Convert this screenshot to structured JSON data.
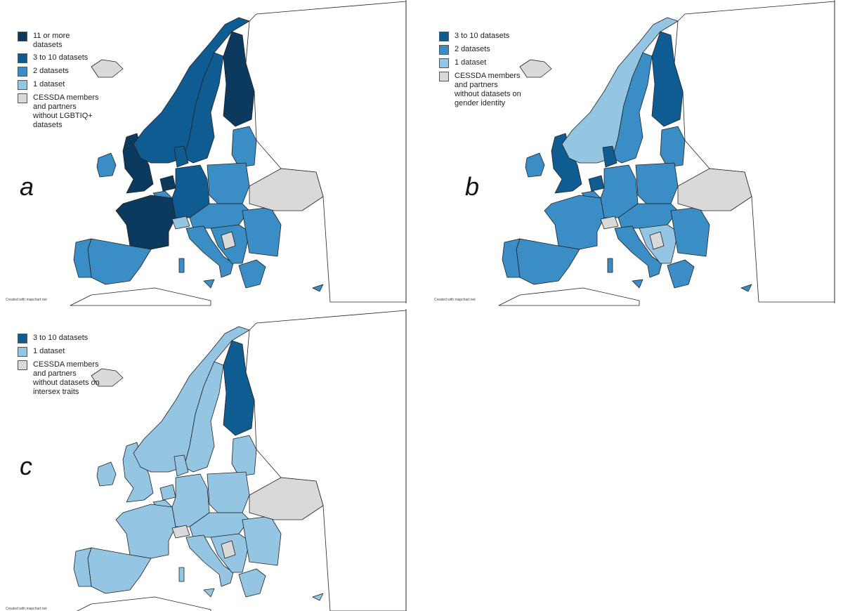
{
  "panels": [
    {
      "label": "a",
      "credit": "Created with mapchart.net",
      "legend": [
        {
          "name": "11 or more datasets",
          "color": "#0b3a5e"
        },
        {
          "name": "3 to 10 datasets",
          "color": "#0f5c93"
        },
        {
          "name": "2 datasets",
          "color": "#3a8dc5"
        },
        {
          "name": "1 dataset",
          "color": "#94c5e2"
        },
        {
          "name": "CESSDA members and partners without LGBTIQ+ datasets",
          "color": "#d9d9d9"
        }
      ]
    },
    {
      "label": "b",
      "credit": "Created with mapchart.net",
      "legend": [
        {
          "name": "3 to 10 datasets",
          "color": "#0f5c93"
        },
        {
          "name": "2 datasets",
          "color": "#3a8dc5"
        },
        {
          "name": "1 dataset",
          "color": "#94c5e2"
        },
        {
          "name": "CESSDA members and partners without datasets on gender identity",
          "color": "#d9d9d9"
        }
      ]
    },
    {
      "label": "c",
      "credit": "Created with mapchart.net",
      "legend": [
        {
          "name": "3 to 10 datasets",
          "color": "#0f5c93"
        },
        {
          "name": "1 dataset",
          "color": "#94c5e2"
        },
        {
          "name": "CESSDA members and partners without datasets on intersex traits",
          "color": "#d9d9d9"
        }
      ]
    }
  ]
}
